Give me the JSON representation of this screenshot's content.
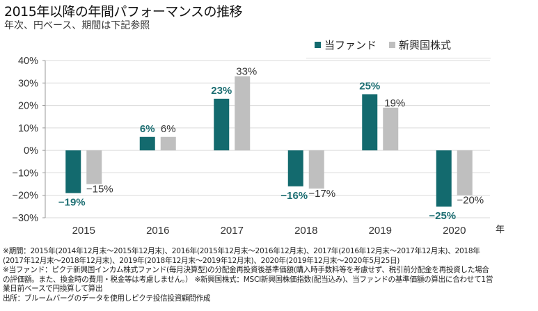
{
  "header": {
    "title": "2015年以降の年間パフォーマンスの推移",
    "subtitle": "年次、円ベース、期間は下記参照"
  },
  "chart_data": {
    "type": "bar",
    "title": "2015年以降の年間パフォーマンスの推移",
    "subtitle": "年次、円ベース、期間は下記参照",
    "categories": [
      "2015",
      "2016",
      "2017",
      "2018",
      "2019",
      "2020"
    ],
    "series": [
      {
        "name": "当ファンド",
        "color": "#136a6e",
        "label_color": "#1c6e72",
        "values": [
          -19,
          6,
          23,
          -16,
          25,
          -25
        ],
        "labels": [
          "−19%",
          "6%",
          "23%",
          "−16%",
          "25%",
          "−25%"
        ]
      },
      {
        "name": "新興国株式",
        "color": "#bfbfbf",
        "label_color": "#333333",
        "values": [
          -15,
          6,
          33,
          -17,
          19,
          -20
        ],
        "labels": [
          "−15%",
          "6%",
          "33%",
          "−17%",
          "19%",
          "−20%"
        ]
      }
    ],
    "xlabel": "年",
    "ylabel": "",
    "ylim": [
      -30,
      40
    ],
    "yticks": [
      40,
      30,
      20,
      10,
      0,
      -10,
      -20,
      -30
    ],
    "ytick_labels": [
      "40%",
      "30%",
      "20%",
      "10%",
      "0%",
      "−10%",
      "−20%",
      "−30%"
    ],
    "grid": true,
    "legend_position": "top-right"
  },
  "notes": [
    "※期間：2015年(2014年12月末～2015年12月末)、2016年(2015年12月末～2016年12月末)、2017年(2016年12月末～2017年12月末)、2018年",
    "(2017年12月末～2018年12月末)、2019年(2018年12月末～2019年12月末)、2020年(2019年12月末～2020年5月25日)",
    "※当ファンド：ピクテ新興国インカム株式ファンド(毎月決算型)の分配金再投資後基準価額(購入時手数料等を考慮せず、税引前分配金を再投資した場合",
    "の評価額。また、換金時の費用・税金等は考慮しません。） ※新興国株式：MSCI新興国株価指数(配当込み)、当ファンドの基準価額の算出に合わせて1営",
    "業日前ベースで円換算して算出",
    "出所：ブルームバーグのデータを使用しピクテ投信投資顧問作成"
  ]
}
